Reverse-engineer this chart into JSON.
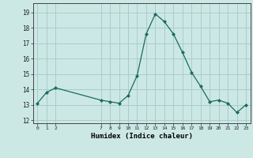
{
  "x": [
    0,
    1,
    2,
    7,
    8,
    9,
    10,
    11,
    12,
    13,
    14,
    15,
    16,
    17,
    18,
    19,
    20,
    21,
    22,
    23
  ],
  "y": [
    13.1,
    13.8,
    14.1,
    13.3,
    13.2,
    13.1,
    13.6,
    14.9,
    17.6,
    18.9,
    18.4,
    17.6,
    16.4,
    15.1,
    14.2,
    13.2,
    13.3,
    13.1,
    12.5,
    13.0
  ],
  "xticks": [
    0,
    1,
    2,
    7,
    8,
    9,
    10,
    11,
    12,
    13,
    14,
    15,
    16,
    17,
    18,
    19,
    20,
    21,
    22,
    23
  ],
  "yticks": [
    12,
    13,
    14,
    15,
    16,
    17,
    18,
    19
  ],
  "ylim": [
    11.8,
    19.6
  ],
  "xlim": [
    -0.5,
    23.5
  ],
  "xlabel": "Humidex (Indice chaleur)",
  "line_color": "#1a6b5e",
  "marker": "D",
  "marker_size": 2,
  "bg_color": "#cce8e4",
  "grid_color": "#aacccc",
  "title": ""
}
